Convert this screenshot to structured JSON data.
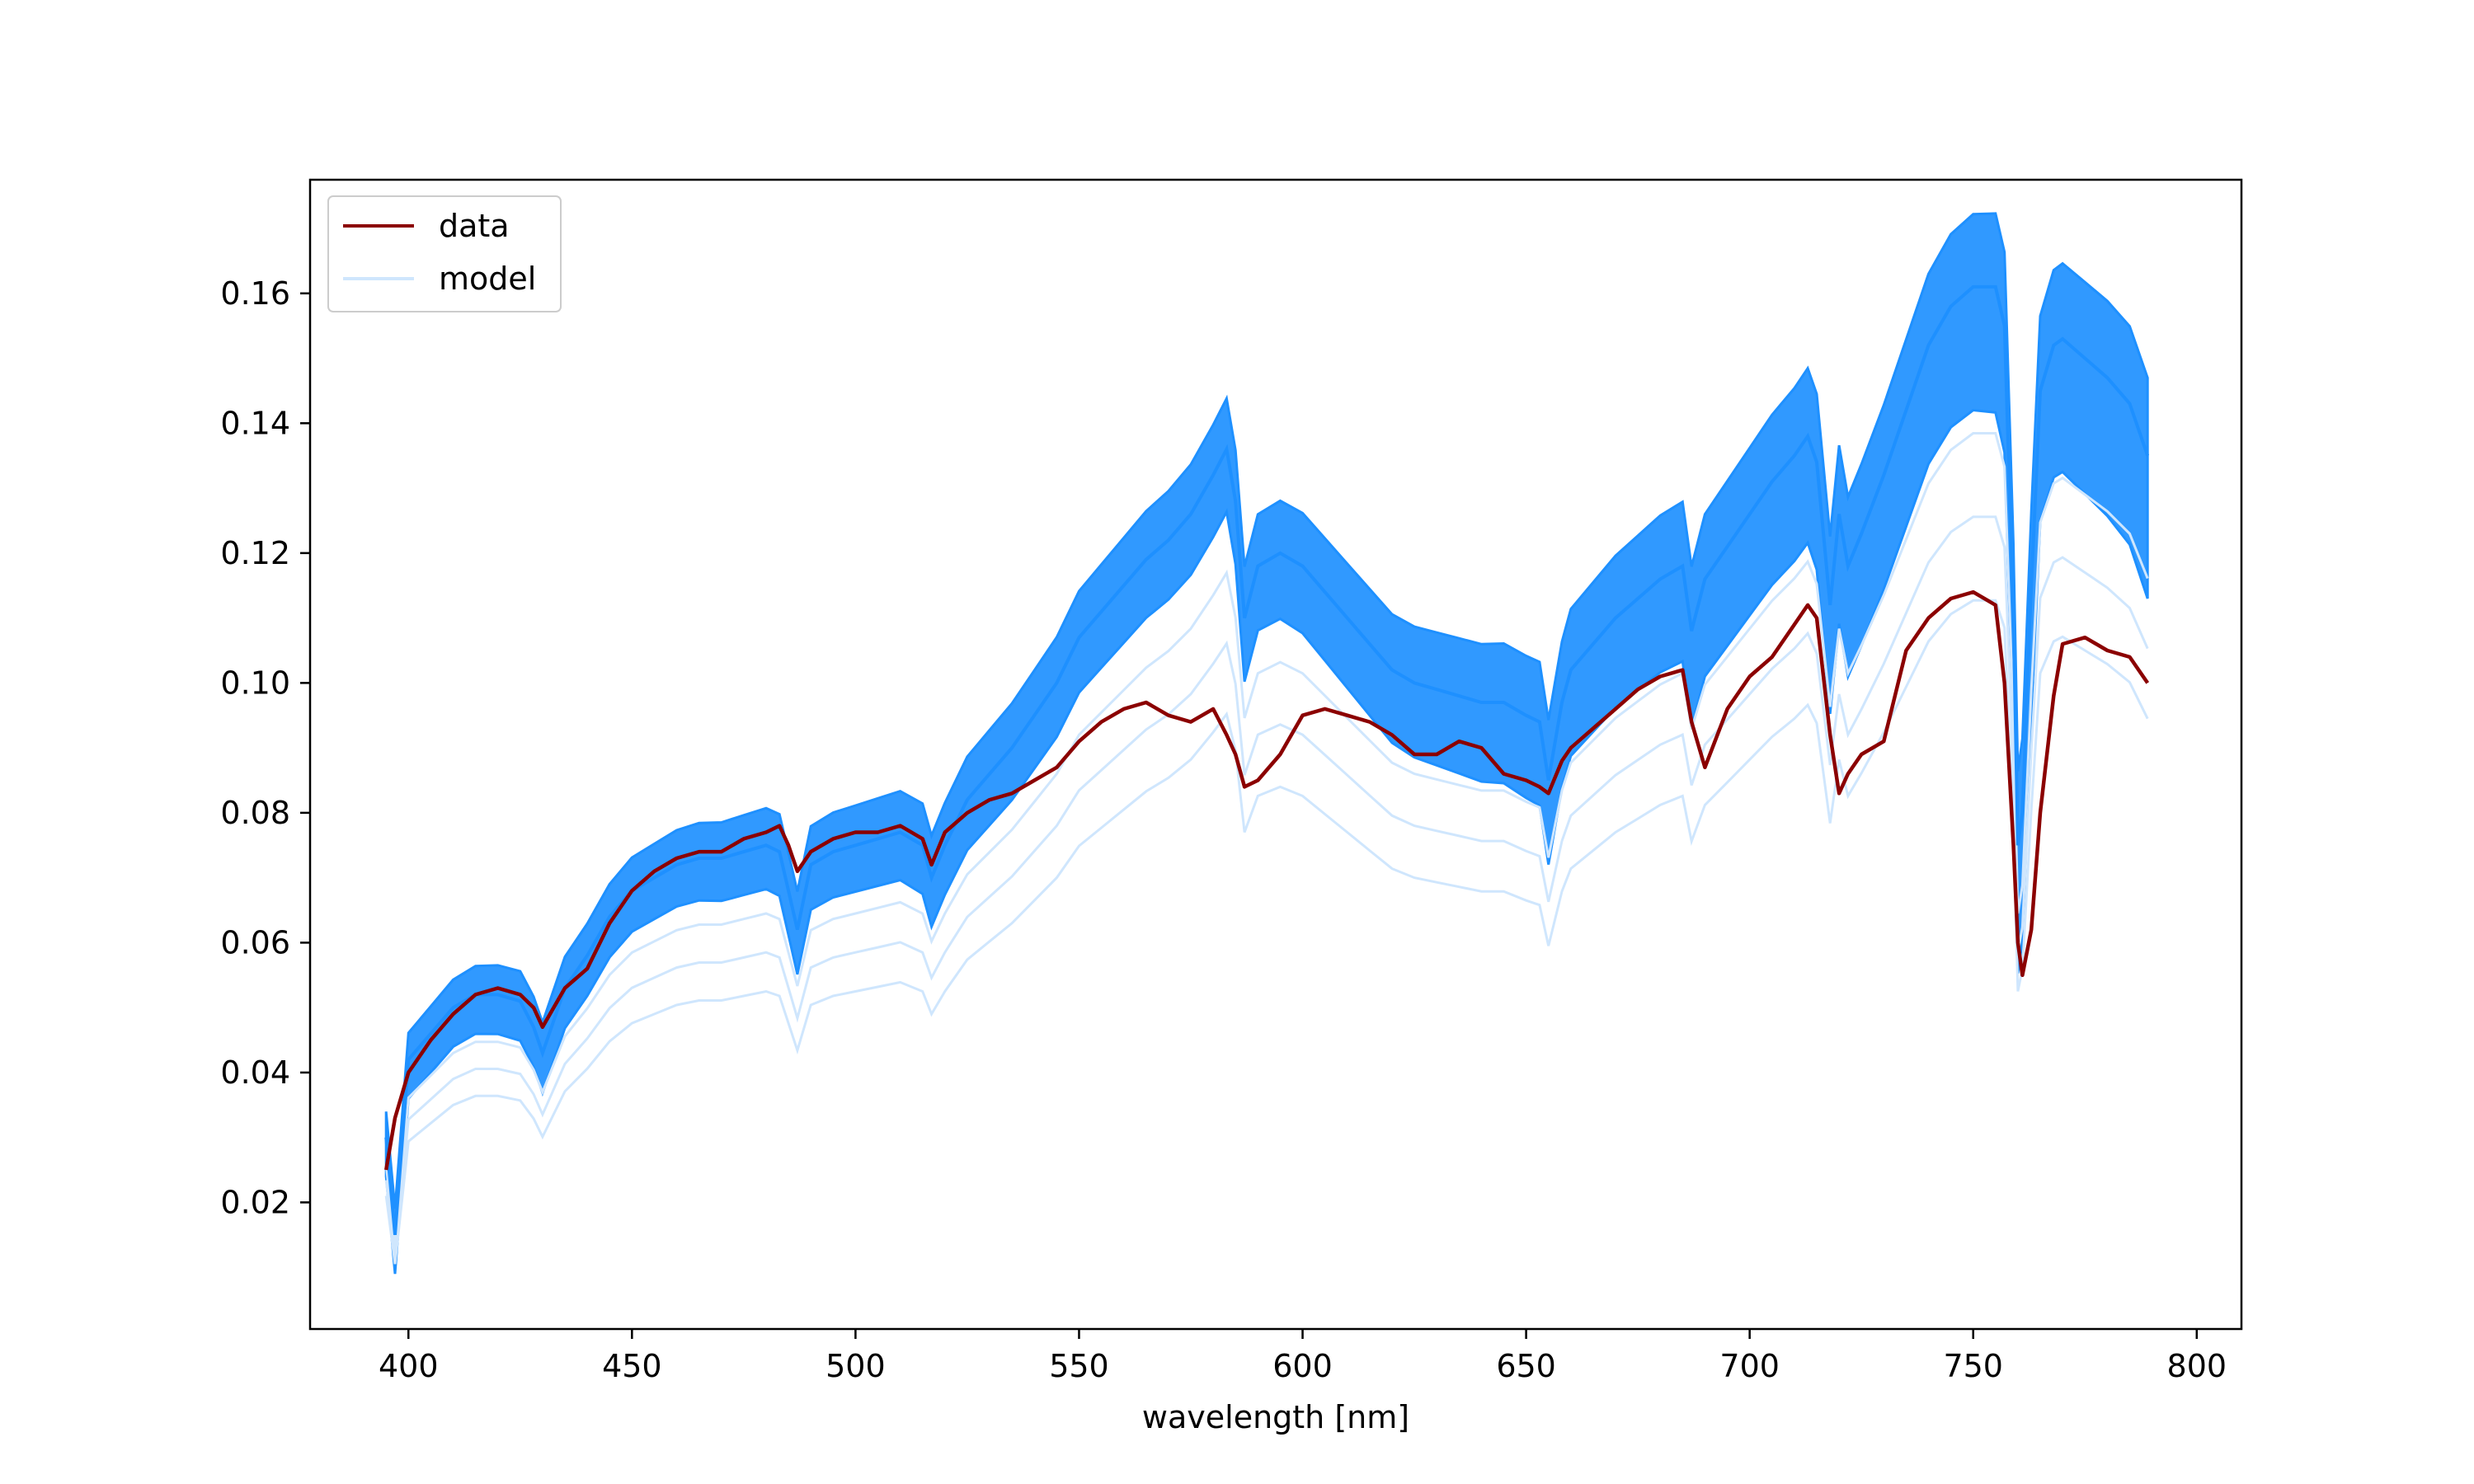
{
  "chart_data": {
    "type": "line",
    "title": "",
    "xlabel": "wavelength [nm]",
    "ylabel": "",
    "xlim": [
      378,
      810
    ],
    "ylim": [
      0.0005,
      0.1775
    ],
    "xticks": [
      400,
      450,
      500,
      550,
      600,
      650,
      700,
      750,
      800
    ],
    "yticks": [
      0.02,
      0.04,
      0.06,
      0.08,
      0.1,
      0.12,
      0.14,
      0.16
    ],
    "xtick_labels": [
      "400",
      "450",
      "500",
      "550",
      "600",
      "650",
      "700",
      "750",
      "800"
    ],
    "ytick_labels": [
      "0.02",
      "0.04",
      "0.06",
      "0.08",
      "0.10",
      "0.12",
      "0.14",
      "0.16"
    ],
    "grid": false,
    "legend_position": "top-left",
    "colors": {
      "data": "#8b0000",
      "model": "#1e90ff"
    },
    "legend": [
      {
        "label": "data",
        "color": "#8b0000"
      },
      {
        "label": "model",
        "color": "#cfe6fd"
      }
    ],
    "x": [
      395,
      397,
      400,
      405,
      410,
      415,
      420,
      425,
      428,
      430,
      435,
      440,
      445,
      450,
      455,
      460,
      465,
      470,
      475,
      480,
      483,
      485,
      487,
      490,
      495,
      500,
      505,
      510,
      515,
      517,
      520,
      525,
      530,
      535,
      540,
      545,
      550,
      555,
      560,
      565,
      570,
      575,
      580,
      583,
      585,
      587,
      590,
      595,
      600,
      605,
      610,
      615,
      620,
      625,
      630,
      635,
      640,
      645,
      650,
      653,
      655,
      658,
      660,
      665,
      670,
      675,
      680,
      685,
      687,
      690,
      695,
      700,
      705,
      710,
      713,
      715,
      718,
      720,
      722,
      725,
      730,
      735,
      740,
      745,
      750,
      755,
      757,
      759,
      760,
      761,
      763,
      765,
      768,
      770,
      775,
      780,
      785,
      789
    ],
    "series": [
      {
        "name": "data",
        "values": [
          0.025,
          0.033,
          0.04,
          0.045,
          0.049,
          0.052,
          0.053,
          0.052,
          0.05,
          0.047,
          0.053,
          0.056,
          0.063,
          0.068,
          0.071,
          0.073,
          0.074,
          0.074,
          0.076,
          0.077,
          0.078,
          0.075,
          0.071,
          0.074,
          0.076,
          0.077,
          0.077,
          0.078,
          0.076,
          0.072,
          0.077,
          0.08,
          0.082,
          0.083,
          0.085,
          0.087,
          0.091,
          0.094,
          0.096,
          0.097,
          0.095,
          0.094,
          0.096,
          0.092,
          0.089,
          0.084,
          0.085,
          0.089,
          0.095,
          0.096,
          0.095,
          0.094,
          0.092,
          0.089,
          0.089,
          0.091,
          0.09,
          0.086,
          0.085,
          0.084,
          0.083,
          0.088,
          0.09,
          0.093,
          0.096,
          0.099,
          0.101,
          0.102,
          0.094,
          0.087,
          0.096,
          0.101,
          0.104,
          0.109,
          0.112,
          0.11,
          0.092,
          0.083,
          0.086,
          0.089,
          0.091,
          0.105,
          0.11,
          0.113,
          0.114,
          0.112,
          0.1,
          0.075,
          0.06,
          0.055,
          0.062,
          0.08,
          0.098,
          0.106,
          0.107,
          0.105,
          0.104,
          0.1
        ]
      },
      {
        "name": "model",
        "values": [
          0.03,
          0.015,
          0.042,
          0.046,
          0.05,
          0.052,
          0.052,
          0.051,
          0.047,
          0.043,
          0.053,
          0.058,
          0.064,
          0.068,
          0.07,
          0.072,
          0.073,
          0.073,
          0.074,
          0.075,
          0.074,
          0.068,
          0.062,
          0.072,
          0.074,
          0.075,
          0.076,
          0.077,
          0.075,
          0.07,
          0.075,
          0.082,
          0.086,
          0.09,
          0.095,
          0.1,
          0.107,
          0.111,
          0.115,
          0.119,
          0.122,
          0.126,
          0.132,
          0.136,
          0.128,
          0.11,
          0.118,
          0.12,
          0.118,
          0.114,
          0.11,
          0.106,
          0.102,
          0.1,
          0.099,
          0.098,
          0.097,
          0.097,
          0.095,
          0.094,
          0.085,
          0.097,
          0.102,
          0.106,
          0.11,
          0.113,
          0.116,
          0.118,
          0.108,
          0.116,
          0.121,
          0.126,
          0.131,
          0.135,
          0.138,
          0.134,
          0.112,
          0.126,
          0.118,
          0.123,
          0.132,
          0.142,
          0.152,
          0.158,
          0.161,
          0.161,
          0.155,
          0.11,
          0.075,
          0.08,
          0.115,
          0.145,
          0.152,
          0.153,
          0.15,
          0.147,
          0.143,
          0.135
        ]
      }
    ]
  }
}
